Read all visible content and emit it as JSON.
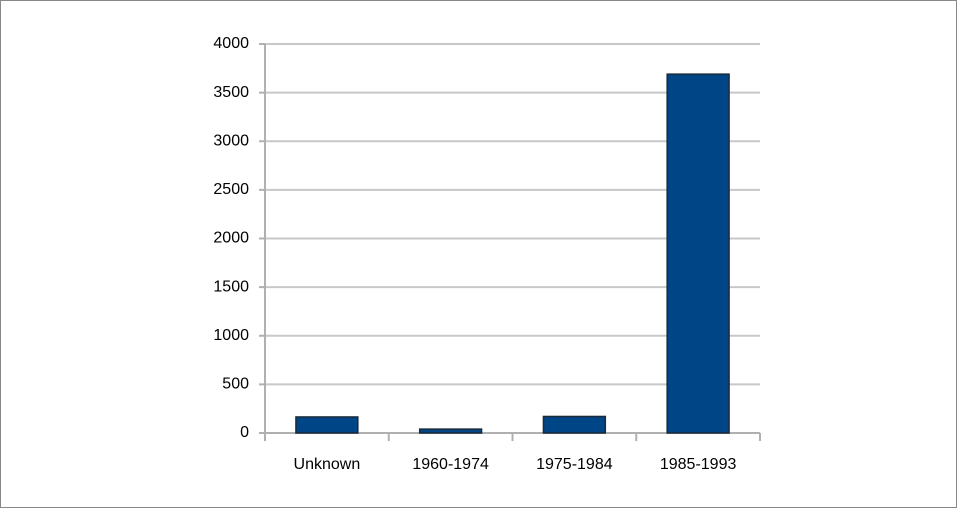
{
  "chart_data": {
    "type": "bar",
    "categories": [
      "Unknown",
      "1960-1974",
      "1975-1984",
      "1985-1993"
    ],
    "values": [
      165,
      40,
      170,
      3690
    ],
    "color": "#004586",
    "ylim": [
      0,
      4000
    ],
    "yticks": [
      0,
      500,
      1000,
      1500,
      2000,
      2500,
      3000,
      3500,
      4000
    ],
    "grid": true
  }
}
